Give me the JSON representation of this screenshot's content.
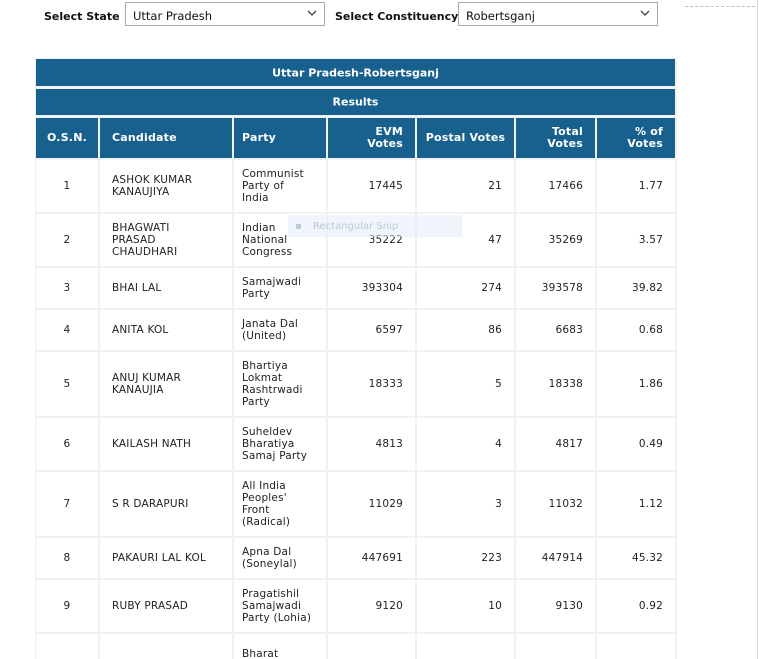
{
  "filters": {
    "state_label": "Select State",
    "state_value": "Uttar Pradesh",
    "constituency_label": "Select Constituency",
    "constituency_value": "Robertsganj"
  },
  "table": {
    "title": "Uttar Pradesh-Robertsganj",
    "subtitle": "Results",
    "headers": [
      "O.S.N.",
      "Candidate",
      "Party",
      "EVM\nVotes",
      "Postal Votes",
      "Total\nVotes",
      "% of\nVotes"
    ],
    "rows": [
      {
        "osn": "1",
        "candidate": "ASHOK KUMAR\nKANAUJIYA",
        "party": "Communist\nParty of\nIndia",
        "evm": "17445",
        "postal": "21",
        "total": "17466",
        "pct": "1.77"
      },
      {
        "osn": "2",
        "candidate": "BHAGWATI\nPRASAD\nCHAUDHARI",
        "party": "Indian\nNational\nCongress",
        "evm": "35222",
        "postal": "47",
        "total": "35269",
        "pct": "3.57"
      },
      {
        "osn": "3",
        "candidate": "BHAI LAL",
        "party": "Samajwadi\nParty",
        "evm": "393304",
        "postal": "274",
        "total": "393578",
        "pct": "39.82"
      },
      {
        "osn": "4",
        "candidate": "ANITA KOL",
        "party": "Janata Dal\n(United)",
        "evm": "6597",
        "postal": "86",
        "total": "6683",
        "pct": "0.68"
      },
      {
        "osn": "5",
        "candidate": "ANUJ KUMAR\nKANAUJIA",
        "party": "Bhartiya\nLokmat\nRashtrwadi\nParty",
        "evm": "18333",
        "postal": "5",
        "total": "18338",
        "pct": "1.86"
      },
      {
        "osn": "6",
        "candidate": "KAILASH NATH",
        "party": "Suheldev\nBharatiya\nSamaj Party",
        "evm": "4813",
        "postal": "4",
        "total": "4817",
        "pct": "0.49"
      },
      {
        "osn": "7",
        "candidate": "S R DARAPURI",
        "party": "All India\nPeoples'\nFront\n(Radical)",
        "evm": "11029",
        "postal": "3",
        "total": "11032",
        "pct": "1.12"
      },
      {
        "osn": "8",
        "candidate": "PAKAURI LAL KOL",
        "party": "Apna Dal\n(Soneylal)",
        "evm": "447691",
        "postal": "223",
        "total": "447914",
        "pct": "45.32"
      },
      {
        "osn": "9",
        "candidate": "RUBY PRASAD",
        "party": "Pragatishil\nSamajwadi\nParty (Lohia)",
        "evm": "9120",
        "postal": "10",
        "total": "9130",
        "pct": "0.92"
      },
      {
        "osn": "",
        "candidate": "",
        "party": "Bharat",
        "evm": "",
        "postal": "",
        "total": "",
        "pct": ""
      }
    ]
  },
  "overlay": {
    "snip_label": "Rectangular Snip"
  },
  "colors": {
    "header_bg": "#18618e",
    "border": "#f1f1f1"
  }
}
